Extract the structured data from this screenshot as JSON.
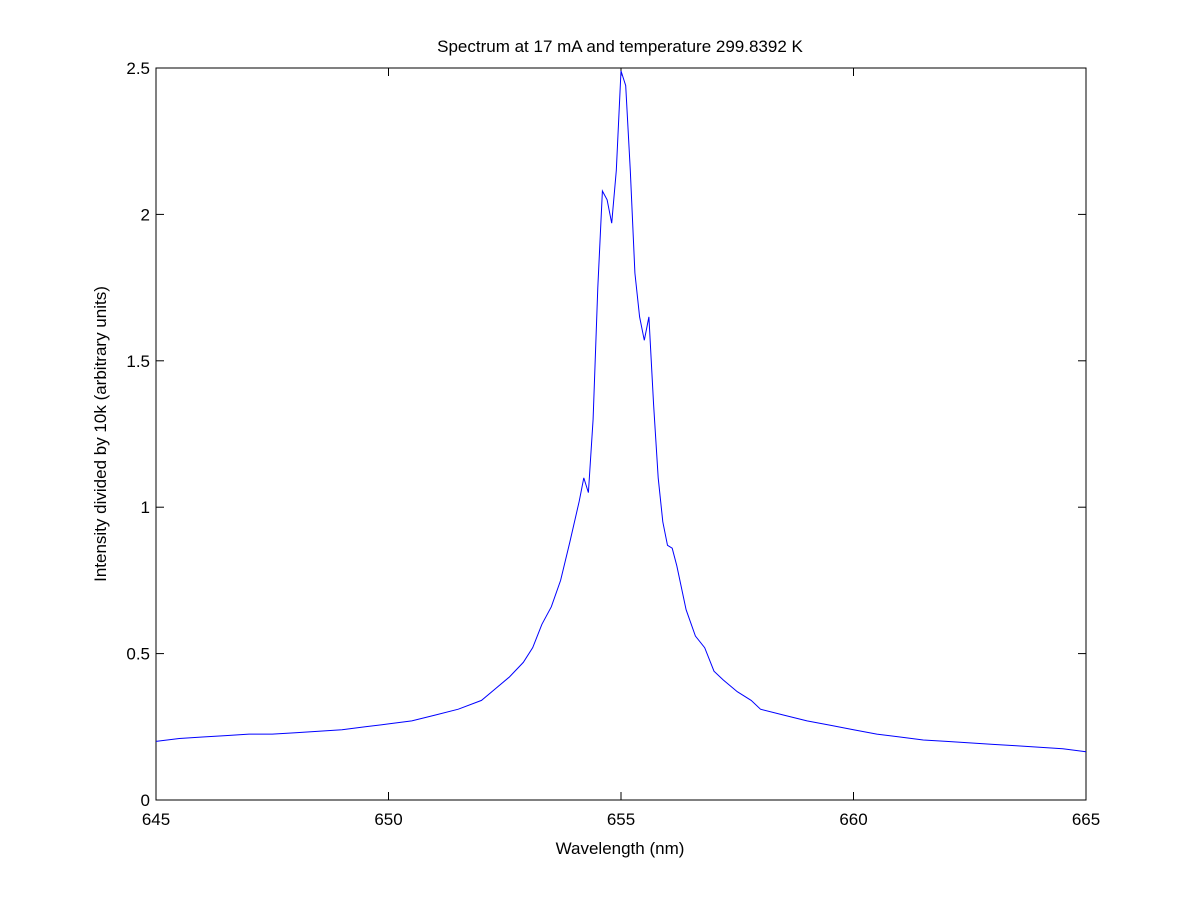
{
  "chart_data": {
    "type": "line",
    "title": "Spectrum at 17 mA and temperature 299.8392 K",
    "xlabel": "Wavelength (nm)",
    "ylabel": "Intensity divided by 10k (arbitrary units)",
    "xlim": [
      645,
      665
    ],
    "ylim": [
      0,
      2.5
    ],
    "xticks": [
      645,
      650,
      655,
      660,
      665
    ],
    "xtick_labels": [
      "645",
      "650",
      "655",
      "660",
      "665"
    ],
    "yticks": [
      0,
      0.5,
      1,
      1.5,
      2,
      2.5
    ],
    "ytick_labels": [
      "0",
      "0.5",
      "1",
      "1.5",
      "2",
      "2.5"
    ],
    "grid": false,
    "series": [
      {
        "color": "#0000ff",
        "x": [
          645.0,
          645.5,
          646.0,
          646.5,
          647.0,
          647.5,
          648.0,
          648.5,
          649.0,
          649.5,
          650.0,
          650.5,
          651.0,
          651.5,
          652.0,
          652.3,
          652.6,
          652.9,
          653.1,
          653.3,
          653.5,
          653.7,
          653.9,
          654.1,
          654.2,
          654.3,
          654.4,
          654.5,
          654.6,
          654.7,
          654.8,
          654.9,
          655.0,
          655.1,
          655.2,
          655.3,
          655.4,
          655.5,
          655.6,
          655.7,
          655.8,
          655.9,
          656.0,
          656.1,
          656.2,
          656.4,
          656.6,
          656.8,
          657.0,
          657.2,
          657.5,
          657.8,
          658.0,
          658.5,
          659.0,
          659.5,
          660.0,
          660.5,
          661.0,
          661.5,
          662.0,
          662.5,
          663.0,
          663.5,
          664.0,
          664.5,
          665.0
        ],
        "y": [
          0.2,
          0.21,
          0.215,
          0.22,
          0.225,
          0.225,
          0.23,
          0.235,
          0.24,
          0.25,
          0.26,
          0.27,
          0.29,
          0.31,
          0.34,
          0.38,
          0.42,
          0.47,
          0.52,
          0.6,
          0.66,
          0.75,
          0.88,
          1.02,
          1.1,
          1.05,
          1.3,
          1.75,
          2.08,
          2.05,
          1.97,
          2.15,
          2.49,
          2.44,
          2.15,
          1.8,
          1.65,
          1.57,
          1.65,
          1.35,
          1.1,
          0.95,
          0.87,
          0.86,
          0.8,
          0.65,
          0.56,
          0.52,
          0.44,
          0.41,
          0.37,
          0.34,
          0.31,
          0.29,
          0.27,
          0.255,
          0.24,
          0.225,
          0.215,
          0.205,
          0.2,
          0.195,
          0.19,
          0.185,
          0.18,
          0.175,
          0.165
        ]
      }
    ]
  }
}
